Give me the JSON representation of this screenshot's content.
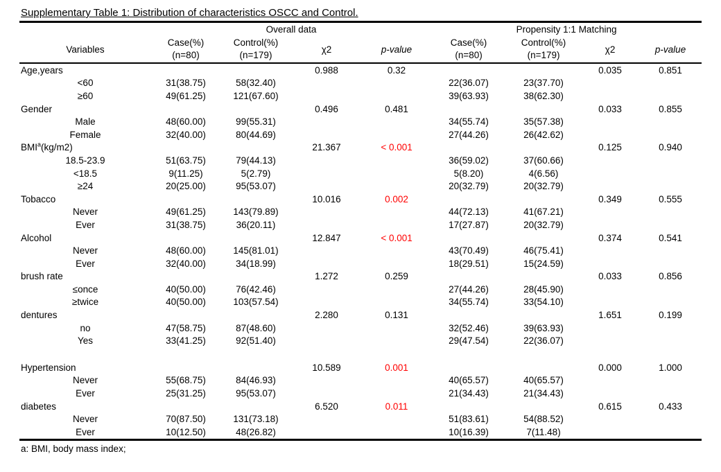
{
  "title": "Supplementary Table 1: Distribution of characteristics OSCC and Control.",
  "footnote": "a: BMI, body mass index;",
  "colors": {
    "significant_p": "#ff0000",
    "text": "#000000",
    "background": "#ffffff"
  },
  "header": {
    "group_overall": "Overall data",
    "group_matching": "Propensity 1:1 Matching",
    "variables": "Variables",
    "case_label": "Case(%)",
    "case_n": "(n=80)",
    "control_label": "Control(%)",
    "control_n": "(n=179)",
    "chi2": "χ2",
    "pvalue": "p-value"
  },
  "table": {
    "rows": [
      {
        "level": "group",
        "label": "Age,years",
        "overall": {
          "case": "",
          "control": "",
          "chi2": "0.988",
          "p": "0.32",
          "p_sig": false
        },
        "matching": {
          "case": "",
          "control": "",
          "chi2": "0.035",
          "p": "0.851",
          "p_sig": false
        }
      },
      {
        "level": "sub",
        "label": "<60",
        "overall": {
          "case": "31(38.75)",
          "control": "58(32.40)",
          "chi2": "",
          "p": ""
        },
        "matching": {
          "case": "22(36.07)",
          "control": "23(37.70)",
          "chi2": "",
          "p": ""
        }
      },
      {
        "level": "sub",
        "label": "≥60",
        "overall": {
          "case": "49(61.25)",
          "control": "121(67.60)",
          "chi2": "",
          "p": ""
        },
        "matching": {
          "case": "39(63.93)",
          "control": "38(62.30)",
          "chi2": "",
          "p": ""
        }
      },
      {
        "level": "group",
        "label": "Gender",
        "overall": {
          "case": "",
          "control": "",
          "chi2": "0.496",
          "p": "0.481",
          "p_sig": false
        },
        "matching": {
          "case": "",
          "control": "",
          "chi2": "0.033",
          "p": "0.855",
          "p_sig": false
        }
      },
      {
        "level": "sub",
        "label": "Male",
        "overall": {
          "case": "48(60.00)",
          "control": "99(55.31)",
          "chi2": "",
          "p": ""
        },
        "matching": {
          "case": "34(55.74)",
          "control": "35(57.38)",
          "chi2": "",
          "p": ""
        }
      },
      {
        "level": "sub",
        "label": "Female",
        "overall": {
          "case": "32(40.00)",
          "control": "80(44.69)",
          "chi2": "",
          "p": ""
        },
        "matching": {
          "case": "27(44.26)",
          "control": "26(42.62)",
          "chi2": "",
          "p": ""
        }
      },
      {
        "level": "group",
        "label": "BMI",
        "label_sup": "a",
        "label_tail": "(kg/m2)",
        "overall": {
          "case": "",
          "control": "",
          "chi2": "21.367",
          "p": "< 0.001",
          "p_sig": true
        },
        "matching": {
          "case": "",
          "control": "",
          "chi2": "0.125",
          "p": "0.940",
          "p_sig": false
        }
      },
      {
        "level": "sub",
        "label": "18.5-23.9",
        "overall": {
          "case": "51(63.75)",
          "control": "79(44.13)",
          "chi2": "",
          "p": ""
        },
        "matching": {
          "case": "36(59.02)",
          "control": "37(60.66)",
          "chi2": "",
          "p": ""
        }
      },
      {
        "level": "sub",
        "label": "<18.5",
        "overall": {
          "case": "9(11.25)",
          "control": "5(2.79)",
          "chi2": "",
          "p": ""
        },
        "matching": {
          "case": "5(8.20)",
          "control": "4(6.56)",
          "chi2": "",
          "p": ""
        }
      },
      {
        "level": "sub",
        "label": "≥24",
        "overall": {
          "case": "20(25.00)",
          "control": "95(53.07)",
          "chi2": "",
          "p": ""
        },
        "matching": {
          "case": "20(32.79)",
          "control": "20(32.79)",
          "chi2": "",
          "p": ""
        }
      },
      {
        "level": "group",
        "label": "Tobacco",
        "overall": {
          "case": "",
          "control": "",
          "chi2": "10.016",
          "p": "0.002",
          "p_sig": true
        },
        "matching": {
          "case": "",
          "control": "",
          "chi2": "0.349",
          "p": "0.555",
          "p_sig": false
        }
      },
      {
        "level": "sub",
        "label": "Never",
        "overall": {
          "case": "49(61.25)",
          "control": "143(79.89)",
          "chi2": "",
          "p": ""
        },
        "matching": {
          "case": "44(72.13)",
          "control": "41(67.21)",
          "chi2": "",
          "p": ""
        }
      },
      {
        "level": "sub",
        "label": "Ever",
        "overall": {
          "case": "31(38.75)",
          "control": "36(20.11)",
          "chi2": "",
          "p": ""
        },
        "matching": {
          "case": "17(27.87)",
          "control": "20(32.79)",
          "chi2": "",
          "p": ""
        }
      },
      {
        "level": "group",
        "label": "Alcohol",
        "overall": {
          "case": "",
          "control": "",
          "chi2": "12.847",
          "p": "< 0.001",
          "p_sig": true
        },
        "matching": {
          "case": "",
          "control": "",
          "chi2": "0.374",
          "p": "0.541",
          "p_sig": false
        }
      },
      {
        "level": "sub",
        "label": "Never",
        "overall": {
          "case": "48(60.00)",
          "control": "145(81.01)",
          "chi2": "",
          "p": ""
        },
        "matching": {
          "case": "43(70.49)",
          "control": "46(75.41)",
          "chi2": "",
          "p": ""
        }
      },
      {
        "level": "sub",
        "label": "Ever",
        "overall": {
          "case": "32(40.00)",
          "control": "34(18.99)",
          "chi2": "",
          "p": ""
        },
        "matching": {
          "case": "18(29.51)",
          "control": "15(24.59)",
          "chi2": "",
          "p": ""
        }
      },
      {
        "level": "group",
        "label": "brush rate",
        "overall": {
          "case": "",
          "control": "",
          "chi2": "1.272",
          "p": "0.259",
          "p_sig": false
        },
        "matching": {
          "case": "",
          "control": "",
          "chi2": "0.033",
          "p": "0.856",
          "p_sig": false
        }
      },
      {
        "level": "sub",
        "label": "≤once",
        "overall": {
          "case": "40(50.00)",
          "control": "76(42.46)",
          "chi2": "",
          "p": ""
        },
        "matching": {
          "case": "27(44.26)",
          "control": "28(45.90)",
          "chi2": "",
          "p": ""
        }
      },
      {
        "level": "sub",
        "label": "≥twice",
        "overall": {
          "case": "40(50.00)",
          "control": "103(57.54)",
          "chi2": "",
          "p": ""
        },
        "matching": {
          "case": "34(55.74)",
          "control": "33(54.10)",
          "chi2": "",
          "p": ""
        }
      },
      {
        "level": "group",
        "label": "dentures",
        "overall": {
          "case": "",
          "control": "",
          "chi2": "2.280",
          "p": "0.131",
          "p_sig": false
        },
        "matching": {
          "case": "",
          "control": "",
          "chi2": "1.651",
          "p": "0.199",
          "p_sig": false
        }
      },
      {
        "level": "sub",
        "label": "no",
        "overall": {
          "case": "47(58.75)",
          "control": "87(48.60)",
          "chi2": "",
          "p": ""
        },
        "matching": {
          "case": "32(52.46)",
          "control": "39(63.93)",
          "chi2": "",
          "p": ""
        }
      },
      {
        "level": "sub",
        "label": "Yes",
        "overall": {
          "case": "33(41.25)",
          "control": "92(51.40)",
          "chi2": "",
          "p": ""
        },
        "matching": {
          "case": "29(47.54)",
          "control": "22(36.07)",
          "chi2": "",
          "p": ""
        }
      },
      {
        "level": "spacer"
      },
      {
        "level": "group",
        "label": "Hypertension",
        "overall": {
          "case": "",
          "control": "",
          "chi2": "10.589",
          "p": "0.001",
          "p_sig": true
        },
        "matching": {
          "case": "",
          "control": "",
          "chi2": "0.000",
          "p": "1.000",
          "p_sig": false
        }
      },
      {
        "level": "sub",
        "label": "Never",
        "overall": {
          "case": "55(68.75)",
          "control": "84(46.93)",
          "chi2": "",
          "p": ""
        },
        "matching": {
          "case": "40(65.57)",
          "control": "40(65.57)",
          "chi2": "",
          "p": ""
        }
      },
      {
        "level": "sub",
        "label": "Ever",
        "overall": {
          "case": "25(31.25)",
          "control": "95(53.07)",
          "chi2": "",
          "p": ""
        },
        "matching": {
          "case": "21(34.43)",
          "control": "21(34.43)",
          "chi2": "",
          "p": ""
        }
      },
      {
        "level": "group",
        "label": "diabetes",
        "overall": {
          "case": "",
          "control": "",
          "chi2": "6.520",
          "p": "0.011",
          "p_sig": true
        },
        "matching": {
          "case": "",
          "control": "",
          "chi2": "0.615",
          "p": "0.433",
          "p_sig": false
        }
      },
      {
        "level": "sub",
        "label": "Never",
        "overall": {
          "case": "70(87.50)",
          "control": "131(73.18)",
          "chi2": "",
          "p": ""
        },
        "matching": {
          "case": "51(83.61)",
          "control": "54(88.52)",
          "chi2": "",
          "p": ""
        }
      },
      {
        "level": "sub",
        "label": "Ever",
        "overall": {
          "case": "10(12.50)",
          "control": "48(26.82)",
          "chi2": "",
          "p": ""
        },
        "matching": {
          "case": "10(16.39)",
          "control": "7(11.48)",
          "chi2": "",
          "p": ""
        }
      }
    ]
  }
}
